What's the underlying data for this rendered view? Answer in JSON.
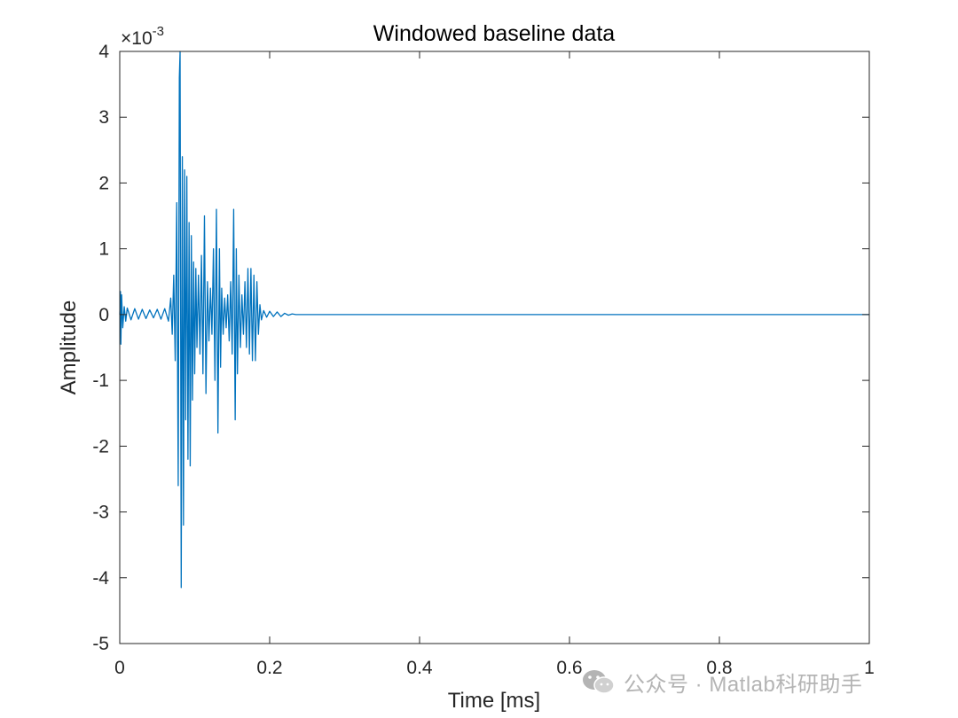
{
  "chart_data": {
    "type": "line",
    "title": "Windowed baseline data",
    "xlabel": "Time [ms]",
    "ylabel": "Amplitude",
    "y_exponent_label": "×10",
    "y_exponent_power": "-3",
    "xlim": [
      0,
      1
    ],
    "ylim": [
      -5,
      4
    ],
    "x_ticks": [
      0,
      0.2,
      0.4,
      0.6,
      0.8,
      1
    ],
    "x_tick_labels": [
      "0",
      "0.2",
      "0.4",
      "0.6",
      "0.8",
      "1"
    ],
    "y_ticks": [
      -5,
      -4,
      -3,
      -2,
      -1,
      0,
      1,
      2,
      3,
      4
    ],
    "y_tick_labels": [
      "-5",
      "-4",
      "-3",
      "-2",
      "-1",
      "0",
      "1",
      "2",
      "3",
      "4"
    ],
    "y_scale_factor": 0.001,
    "grid": false,
    "series": [
      {
        "color": "#0072BD",
        "x": [
          0,
          0.001,
          0.0015,
          0.0025,
          0.004,
          0.006,
          0.008,
          0.01,
          0.015,
          0.02,
          0.025,
          0.03,
          0.035,
          0.04,
          0.045,
          0.05,
          0.055,
          0.06,
          0.065,
          0.068,
          0.07,
          0.072,
          0.074,
          0.076,
          0.078,
          0.0795,
          0.0805,
          0.082,
          0.0835,
          0.085,
          0.0865,
          0.088,
          0.0895,
          0.091,
          0.0925,
          0.094,
          0.0955,
          0.097,
          0.0985,
          0.1,
          0.1015,
          0.103,
          0.105,
          0.107,
          0.109,
          0.111,
          0.113,
          0.115,
          0.117,
          0.119,
          0.121,
          0.123,
          0.125,
          0.127,
          0.129,
          0.131,
          0.133,
          0.1345,
          0.136,
          0.138,
          0.14,
          0.142,
          0.144,
          0.146,
          0.148,
          0.15,
          0.152,
          0.154,
          0.1555,
          0.157,
          0.159,
          0.161,
          0.163,
          0.165,
          0.167,
          0.169,
          0.171,
          0.173,
          0.175,
          0.177,
          0.179,
          0.181,
          0.183,
          0.185,
          0.187,
          0.189,
          0.192,
          0.196,
          0.2,
          0.205,
          0.21,
          0.215,
          0.22,
          0.225,
          0.23,
          0.235,
          0.24,
          0.3,
          0.4,
          0.5,
          0.6,
          0.7,
          0.8,
          0.9,
          1.0
        ],
        "y": [
          0,
          0.35,
          -0.45,
          0.3,
          -0.2,
          0.12,
          -0.1,
          0.1,
          -0.08,
          0.09,
          -0.07,
          0.08,
          -0.06,
          0.07,
          -0.05,
          0.08,
          -0.07,
          0.09,
          -0.1,
          0.25,
          -0.3,
          0.6,
          -0.7,
          1.7,
          -2.6,
          3.6,
          4.0,
          -4.15,
          2.4,
          -3.2,
          2.2,
          -1.6,
          2.1,
          -2.2,
          1.4,
          -2.3,
          1.2,
          -1.3,
          0.8,
          -0.9,
          0.7,
          -0.5,
          0.6,
          -0.6,
          0.9,
          -0.9,
          1.5,
          -1.2,
          0.5,
          -0.4,
          0.4,
          -0.3,
          1.0,
          -1.0,
          1.6,
          -1.8,
          1.0,
          -0.8,
          0.4,
          -0.3,
          0.25,
          -0.2,
          0.3,
          -0.4,
          0.5,
          -0.6,
          1.6,
          -1.6,
          1.0,
          -0.9,
          0.6,
          -0.5,
          0.3,
          -0.3,
          0.5,
          -0.5,
          0.7,
          -0.6,
          0.7,
          -0.7,
          0.6,
          -0.7,
          0.5,
          -0.3,
          0.15,
          -0.08,
          0.06,
          -0.04,
          0.05,
          -0.03,
          0.04,
          -0.03,
          0.02,
          -0.01,
          0.01,
          0,
          0,
          0,
          0,
          0,
          0,
          0,
          0,
          0,
          0
        ]
      }
    ]
  },
  "watermark": {
    "text": "公众号 · Matlab科研助手",
    "icon": "wechat-icon"
  }
}
